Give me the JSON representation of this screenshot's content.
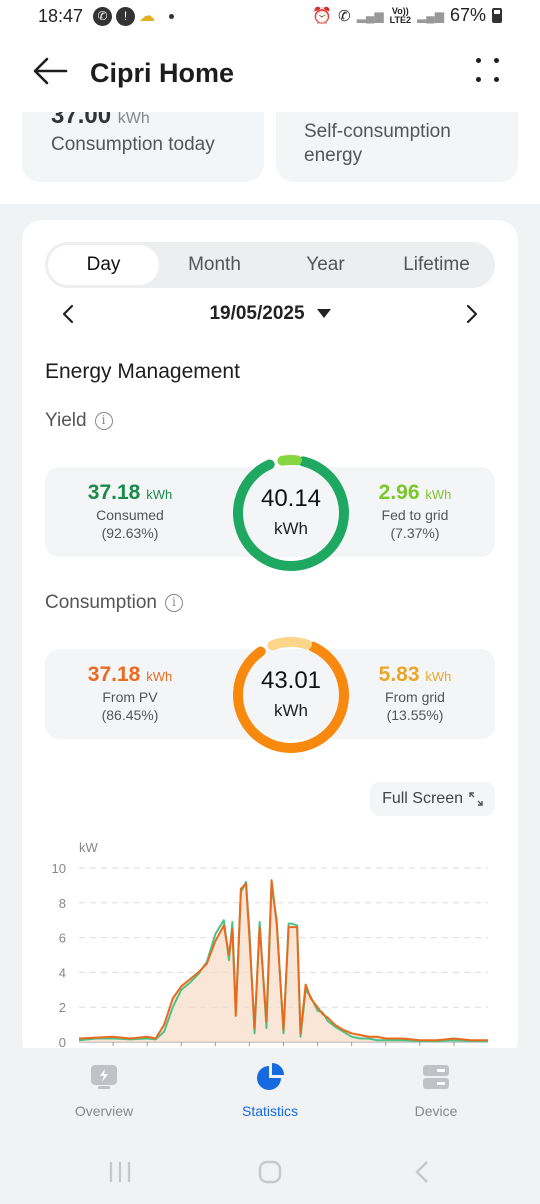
{
  "status_bar": {
    "time": "18:47",
    "battery": "67%",
    "volte": "Vo))",
    "lte": "LTE2"
  },
  "app_bar": {
    "title": "Cipri Home"
  },
  "summary": {
    "consumption_today_value": "37.00",
    "consumption_today_unit": "kWh",
    "consumption_today_label": "Consumption today",
    "self_consumption_label": "Self-consumption energy"
  },
  "tabs": [
    {
      "label": "Day",
      "active": true
    },
    {
      "label": "Month",
      "active": false
    },
    {
      "label": "Year",
      "active": false
    },
    {
      "label": "Lifetime",
      "active": false
    }
  ],
  "date": "19/05/2025",
  "section_title": "Energy Management",
  "yield": {
    "title": "Yield",
    "total": "40.14",
    "unit": "kWh",
    "left": {
      "value": "37.18",
      "unit": "kWh",
      "label": "Consumed",
      "pct": "(92.63%)",
      "color": "#1a8a4a"
    },
    "right": {
      "value": "2.96",
      "unit": "kWh",
      "label": "Fed to grid",
      "pct": "(7.37%)",
      "color": "#7cc728"
    },
    "ring_fraction_main": 0.9263,
    "ring_color_main": "#1ea862",
    "ring_color_secondary": "#86d640"
  },
  "consumption": {
    "title": "Consumption",
    "total": "43.01",
    "unit": "kWh",
    "left": {
      "value": "37.18",
      "unit": "kWh",
      "label": "From PV",
      "pct": "(86.45%)",
      "color": "#ea6a22"
    },
    "right": {
      "value": "5.83",
      "unit": "kWh",
      "label": "From grid",
      "pct": "(13.55%)",
      "color": "#e8a72a"
    },
    "ring_fraction_main": 0.8645,
    "ring_color_main": "#f7890f",
    "ring_color_secondary": "#fcd58a"
  },
  "full_screen_label": "Full Screen",
  "chart_data": {
    "type": "line",
    "ylabel": "kW",
    "ylim": [
      0,
      10
    ],
    "yticks": [
      "10",
      "8",
      "6",
      "4",
      "2",
      "0"
    ],
    "x_hours": [
      0,
      1,
      2,
      3,
      4,
      4.5,
      5,
      5.5,
      6,
      6.5,
      7,
      7.5,
      8,
      8.5,
      8.8,
      9,
      9.2,
      9.5,
      9.8,
      10,
      10.3,
      10.6,
      11,
      11.3,
      11.6,
      12,
      12.3,
      12.5,
      12.8,
      13,
      13.3,
      13.6,
      14,
      14.3,
      14.6,
      15,
      15.5,
      16,
      16.5,
      17,
      17.5,
      18,
      19,
      20,
      21,
      22,
      23,
      24
    ],
    "series": [
      {
        "values": [
          0.2,
          0.25,
          0.3,
          0.2,
          0.3,
          0.2,
          1.0,
          2.5,
          3.2,
          3.6,
          4.0,
          4.5,
          5.8,
          6.7,
          5.0,
          6.5,
          1.5,
          8.8,
          9.1,
          6.0,
          0.8,
          6.6,
          1.2,
          9.3,
          6.8,
          0.7,
          6.6,
          6.6,
          6.6,
          0.5,
          3.3,
          2.5,
          2.0,
          1.6,
          1.4,
          1.0,
          0.7,
          0.5,
          0.4,
          0.3,
          0.3,
          0.2,
          0.2,
          0.1,
          0.1,
          0.2,
          0.1,
          0.1
        ],
        "color": "#e86a1e"
      },
      {
        "values": [
          0.1,
          0.2,
          0.2,
          0.15,
          0.2,
          0.15,
          0.6,
          2.0,
          3.0,
          3.4,
          3.9,
          4.6,
          6.2,
          7.0,
          4.7,
          6.9,
          1.8,
          8.6,
          9.2,
          6.4,
          0.5,
          6.9,
          0.8,
          9.0,
          7.0,
          0.5,
          6.8,
          6.8,
          6.7,
          0.3,
          3.0,
          2.6,
          1.8,
          1.7,
          1.2,
          0.9,
          0.6,
          0.3,
          0.2,
          0.2,
          0.1,
          0.1,
          0.1,
          0.05,
          0.05,
          0.1,
          0.05,
          0.05
        ],
        "color": "#4cc28a"
      }
    ]
  },
  "bottom_nav": [
    {
      "label": "Overview",
      "active": false
    },
    {
      "label": "Statistics",
      "active": true
    },
    {
      "label": "Device",
      "active": false
    }
  ]
}
